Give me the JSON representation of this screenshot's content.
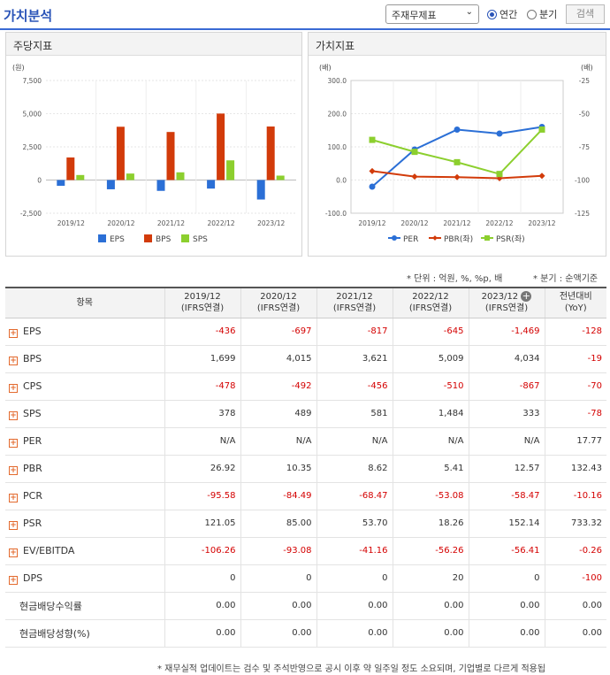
{
  "header": {
    "title": "가치분석",
    "select_value": "주재무제표",
    "radio_annual": "연간",
    "radio_quarter": "분기",
    "search_label": "검색"
  },
  "dividend_panel": {
    "title": "주당지표",
    "unit": "(원)",
    "legend": [
      "EPS",
      "BPS",
      "SPS"
    ]
  },
  "value_panel": {
    "title": "가치지표",
    "unit_left": "(배)",
    "unit_right": "(배)",
    "legend": [
      "PER",
      "PBR(좌)",
      "PSR(좌)"
    ]
  },
  "notes": {
    "unit": "* 단위 : 억원, %, %p, 배",
    "quarter": "* 분기 : 순액기준"
  },
  "chart_data": [
    {
      "type": "bar",
      "title": "주당지표",
      "categories": [
        "2019/12",
        "2020/12",
        "2021/12",
        "2022/12",
        "2023/12"
      ],
      "series": [
        {
          "name": "EPS",
          "values": [
            -436,
            -697,
            -817,
            -645,
            -1469
          ]
        },
        {
          "name": "BPS",
          "values": [
            1699,
            4015,
            3621,
            5009,
            4034
          ]
        },
        {
          "name": "SPS",
          "values": [
            378,
            489,
            581,
            1484,
            333
          ]
        }
      ],
      "ylim": [
        -2500,
        7500
      ],
      "yticks": [
        "7,500",
        "5,000",
        "2,500",
        "0",
        "-2,500"
      ],
      "colors": {
        "EPS": "#2b6fd6",
        "BPS": "#d23b0a",
        "SPS": "#8ccf2e"
      },
      "legend": "bottom"
    },
    {
      "type": "line",
      "title": "가치지표",
      "categories": [
        "2019/12",
        "2020/12",
        "2021/12",
        "2022/12",
        "2023/12"
      ],
      "series": [
        {
          "name": "PER",
          "axis": "right",
          "values": [
            -105,
            -77,
            -62,
            -65,
            -60
          ]
        },
        {
          "name": "PBR(좌)",
          "axis": "left",
          "values": [
            26.92,
            10.35,
            8.62,
            5.41,
            12.57
          ]
        },
        {
          "name": "PSR(좌)",
          "axis": "left",
          "values": [
            121.05,
            85.0,
            53.7,
            18.26,
            152.14
          ]
        }
      ],
      "ylim_left": [
        -100,
        300
      ],
      "yticks_left": [
        "300.0",
        "200.0",
        "100.0",
        "0.0",
        "-100.0"
      ],
      "ylim_right": [
        -125,
        -25
      ],
      "yticks_right": [
        "-25",
        "-50",
        "-75",
        "-100",
        "-125"
      ],
      "colors": {
        "PER": "#2b6fd6",
        "PBR(좌)": "#d23b0a",
        "PSR(좌)": "#8ccf2e"
      },
      "legend": "bottom"
    }
  ],
  "table": {
    "headers": [
      "항목",
      "2019/12\n(IFRS연결)",
      "2020/12\n(IFRS연결)",
      "2021/12\n(IFRS연결)",
      "2022/12\n(IFRS연결)",
      "2023/12\n(IFRS연결)",
      "전년대비\n(YoY)"
    ],
    "rows": [
      {
        "name": "EPS",
        "expand": true,
        "values": [
          "-436",
          "-697",
          "-817",
          "-645",
          "-1,469",
          "-128"
        ]
      },
      {
        "name": "BPS",
        "expand": true,
        "values": [
          "1,699",
          "4,015",
          "3,621",
          "5,009",
          "4,034",
          "-19"
        ]
      },
      {
        "name": "CPS",
        "expand": true,
        "values": [
          "-478",
          "-492",
          "-456",
          "-510",
          "-867",
          "-70"
        ]
      },
      {
        "name": "SPS",
        "expand": true,
        "values": [
          "378",
          "489",
          "581",
          "1,484",
          "333",
          "-78"
        ]
      },
      {
        "name": "PER",
        "expand": true,
        "values": [
          "N/A",
          "N/A",
          "N/A",
          "N/A",
          "N/A",
          "17.77"
        ]
      },
      {
        "name": "PBR",
        "expand": true,
        "values": [
          "26.92",
          "10.35",
          "8.62",
          "5.41",
          "12.57",
          "132.43"
        ]
      },
      {
        "name": "PCR",
        "expand": true,
        "values": [
          "-95.58",
          "-84.49",
          "-68.47",
          "-53.08",
          "-58.47",
          "-10.16"
        ]
      },
      {
        "name": "PSR",
        "expand": true,
        "values": [
          "121.05",
          "85.00",
          "53.70",
          "18.26",
          "152.14",
          "733.32"
        ]
      },
      {
        "name": "EV/EBITDA",
        "expand": true,
        "values": [
          "-106.26",
          "-93.08",
          "-41.16",
          "-56.26",
          "-56.41",
          "-0.26"
        ]
      },
      {
        "name": "DPS",
        "expand": true,
        "values": [
          "0",
          "0",
          "0",
          "20",
          "0",
          "-100"
        ]
      },
      {
        "name": "현금배당수익률",
        "expand": false,
        "values": [
          "0.00",
          "0.00",
          "0.00",
          "0.00",
          "0.00",
          "0.00"
        ]
      },
      {
        "name": "현금배당성향(%)",
        "expand": false,
        "values": [
          "0.00",
          "0.00",
          "0.00",
          "0.00",
          "0.00",
          "0.00"
        ]
      }
    ]
  },
  "footnote": "* 재무실적 업데이트는 검수 및 주석반영으로 공시 이후 약 일주일 정도 소요되며, 기업별로 다르게 적용됩"
}
